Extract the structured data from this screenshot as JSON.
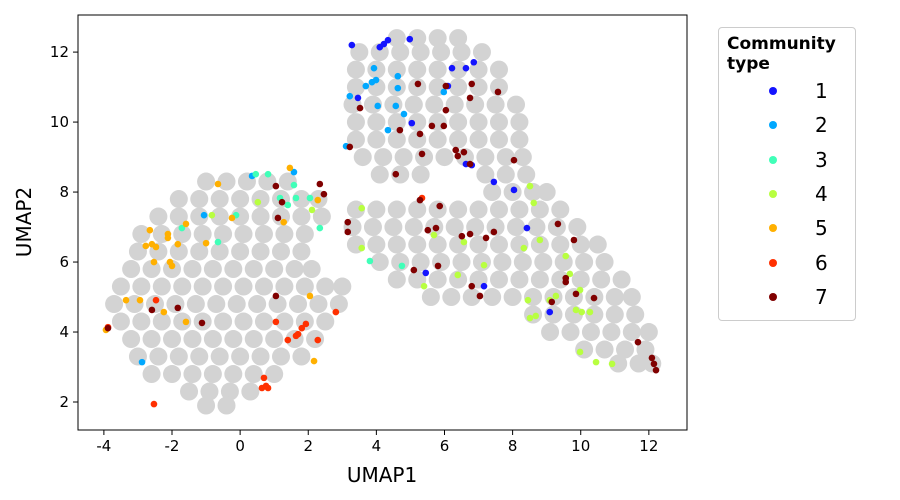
{
  "chart_data": {
    "type": "scatter",
    "xlabel": "UMAP1",
    "ylabel": "UMAP2",
    "legend_title": "Community type",
    "xlim": [
      -4.76,
      13.12
    ],
    "ylim": [
      1.2,
      13.06
    ],
    "xticks": [
      -4,
      -2,
      0,
      2,
      4,
      6,
      8,
      10,
      12
    ],
    "yticks": [
      2,
      4,
      6,
      8,
      10,
      12
    ],
    "background": {
      "color": "#d3d3d3",
      "x": [
        -1.0,
        -0.4,
        0.2,
        0.8,
        1.4,
        -1.8,
        -1.2,
        -0.6,
        0.0,
        0.6,
        1.2,
        1.8,
        2.3,
        -2.4,
        -1.8,
        -1.2,
        -0.6,
        0.0,
        0.6,
        1.2,
        1.8,
        2.4,
        -2.9,
        -2.3,
        -1.7,
        -1.1,
        -0.5,
        0.1,
        0.7,
        1.3,
        1.9,
        -3.0,
        -2.4,
        -1.8,
        -1.2,
        -0.6,
        0.0,
        0.6,
        1.2,
        1.8,
        -3.2,
        -2.6,
        -2.0,
        -1.4,
        -0.8,
        -0.2,
        0.4,
        1.0,
        1.6,
        2.1,
        -3.5,
        -2.9,
        -2.3,
        -1.7,
        -1.1,
        -0.5,
        0.1,
        0.7,
        1.3,
        1.9,
        2.5,
        3.0,
        -3.7,
        -3.1,
        -2.5,
        -1.9,
        -1.3,
        -0.7,
        -0.1,
        0.5,
        1.1,
        1.7,
        2.3,
        2.9,
        -3.5,
        -2.9,
        -2.3,
        -1.7,
        -1.1,
        -0.5,
        0.1,
        0.7,
        1.3,
        1.9,
        2.5,
        -3.2,
        -2.6,
        -2.0,
        -1.4,
        -0.8,
        -0.2,
        0.4,
        1.0,
        1.6,
        2.2,
        -3.0,
        -2.4,
        -1.8,
        -1.2,
        -0.6,
        0.0,
        0.6,
        1.2,
        1.8,
        -2.6,
        -2.0,
        -1.4,
        -0.8,
        -0.2,
        0.4,
        1.0,
        -1.5,
        -0.9,
        -0.3,
        0.3,
        -1.0,
        -0.4,
        4.6,
        5.2,
        5.8,
        6.4,
        3.5,
        4.1,
        4.7,
        5.3,
        5.9,
        6.5,
        7.1,
        3.4,
        4.0,
        4.6,
        5.2,
        5.8,
        6.4,
        7.0,
        7.6,
        3.4,
        4.0,
        4.6,
        5.2,
        5.8,
        6.4,
        7.0,
        7.6,
        3.3,
        3.9,
        4.5,
        5.1,
        5.7,
        6.3,
        6.9,
        7.5,
        8.1,
        3.4,
        4.0,
        4.6,
        5.2,
        5.8,
        6.4,
        7.0,
        7.6,
        8.2,
        3.4,
        4.0,
        4.6,
        5.2,
        5.8,
        6.4,
        7.0,
        7.6,
        8.2,
        3.6,
        4.2,
        4.8,
        5.4,
        6.0,
        6.6,
        7.2,
        7.8,
        8.3,
        4.1,
        4.7,
        5.3,
        7.2,
        7.8,
        8.4,
        7.4,
        8.0,
        8.6,
        9.0,
        3.4,
        4.0,
        4.6,
        5.2,
        5.8,
        6.4,
        7.0,
        7.6,
        8.2,
        8.8,
        9.4,
        3.3,
        3.9,
        4.5,
        5.1,
        5.7,
        6.3,
        6.9,
        7.5,
        8.1,
        8.7,
        9.3,
        9.9,
        3.4,
        4.0,
        4.6,
        5.2,
        5.8,
        6.4,
        7.0,
        7.6,
        8.2,
        8.8,
        9.4,
        10.0,
        10.5,
        4.1,
        4.7,
        5.3,
        5.9,
        6.5,
        7.1,
        7.7,
        8.3,
        8.9,
        9.5,
        10.1,
        10.7,
        4.6,
        5.2,
        5.8,
        6.4,
        7.0,
        7.6,
        8.2,
        8.8,
        9.4,
        10.0,
        10.6,
        11.2,
        5.6,
        6.2,
        6.8,
        7.4,
        8.0,
        8.6,
        9.2,
        9.8,
        10.4,
        11.0,
        11.5,
        8.6,
        9.2,
        9.8,
        10.4,
        11.0,
        11.6,
        9.1,
        9.7,
        10.3,
        10.9,
        11.5,
        12.0,
        10.1,
        10.7,
        11.3,
        11.9,
        11.1,
        11.7,
        12.1
      ],
      "y": [
        8.3,
        8.3,
        8.3,
        8.3,
        8.3,
        7.8,
        7.8,
        7.8,
        7.8,
        7.8,
        7.8,
        7.8,
        7.8,
        7.3,
        7.3,
        7.3,
        7.3,
        7.3,
        7.3,
        7.3,
        7.3,
        7.3,
        6.8,
        6.8,
        6.8,
        6.8,
        6.8,
        6.8,
        6.8,
        6.8,
        6.8,
        6.3,
        6.3,
        6.3,
        6.3,
        6.3,
        6.3,
        6.3,
        6.3,
        6.3,
        5.8,
        5.8,
        5.8,
        5.8,
        5.8,
        5.8,
        5.8,
        5.8,
        5.8,
        5.8,
        5.3,
        5.3,
        5.3,
        5.3,
        5.3,
        5.3,
        5.3,
        5.3,
        5.3,
        5.3,
        5.3,
        5.3,
        4.8,
        4.8,
        4.8,
        4.8,
        4.8,
        4.8,
        4.8,
        4.8,
        4.8,
        4.8,
        4.8,
        4.8,
        4.3,
        4.3,
        4.3,
        4.3,
        4.3,
        4.3,
        4.3,
        4.3,
        4.3,
        4.3,
        4.3,
        3.8,
        3.8,
        3.8,
        3.8,
        3.8,
        3.8,
        3.8,
        3.8,
        3.8,
        3.8,
        3.3,
        3.3,
        3.3,
        3.3,
        3.3,
        3.3,
        3.3,
        3.3,
        3.3,
        2.8,
        2.8,
        2.8,
        2.8,
        2.8,
        2.8,
        2.8,
        2.3,
        2.3,
        2.3,
        2.3,
        1.9,
        1.9,
        12.4,
        12.4,
        12.4,
        12.4,
        12.0,
        12.0,
        12.0,
        12.0,
        12.0,
        12.0,
        12.0,
        11.5,
        11.5,
        11.5,
        11.5,
        11.5,
        11.5,
        11.5,
        11.5,
        11.0,
        11.0,
        11.0,
        11.0,
        11.0,
        11.0,
        11.0,
        11.0,
        10.5,
        10.5,
        10.5,
        10.5,
        10.5,
        10.5,
        10.5,
        10.5,
        10.5,
        10.0,
        10.0,
        10.0,
        10.0,
        10.0,
        10.0,
        10.0,
        10.0,
        10.0,
        9.5,
        9.5,
        9.5,
        9.5,
        9.5,
        9.5,
        9.5,
        9.5,
        9.5,
        9.0,
        9.0,
        9.0,
        9.0,
        9.0,
        9.0,
        9.0,
        9.0,
        9.0,
        8.5,
        8.5,
        8.5,
        8.5,
        8.5,
        8.5,
        8.0,
        8.0,
        8.0,
        8.0,
        7.5,
        7.5,
        7.5,
        7.5,
        7.5,
        7.5,
        7.5,
        7.5,
        7.5,
        7.5,
        7.5,
        7.0,
        7.0,
        7.0,
        7.0,
        7.0,
        7.0,
        7.0,
        7.0,
        7.0,
        7.0,
        7.0,
        7.0,
        6.5,
        6.5,
        6.5,
        6.5,
        6.5,
        6.5,
        6.5,
        6.5,
        6.5,
        6.5,
        6.5,
        6.5,
        6.5,
        6.0,
        6.0,
        6.0,
        6.0,
        6.0,
        6.0,
        6.0,
        6.0,
        6.0,
        6.0,
        6.0,
        6.0,
        5.5,
        5.5,
        5.5,
        5.5,
        5.5,
        5.5,
        5.5,
        5.5,
        5.5,
        5.5,
        5.5,
        5.5,
        5.0,
        5.0,
        5.0,
        5.0,
        5.0,
        5.0,
        5.0,
        5.0,
        5.0,
        5.0,
        5.0,
        4.5,
        4.5,
        4.5,
        4.5,
        4.5,
        4.5,
        4.0,
        4.0,
        4.0,
        4.0,
        4.0,
        4.0,
        3.5,
        3.5,
        3.5,
        3.5,
        3.1,
        3.1,
        3.1
      ]
    },
    "series": [
      {
        "name": "1",
        "color": "#1414ff",
        "x": [
          3.28,
          3.46,
          4.1,
          4.22,
          4.34,
          4.98,
          6.22,
          6.63,
          6.86,
          6.1,
          5.04,
          7.45,
          8.42,
          8.04,
          5.45,
          7.16,
          6.63,
          6.8,
          9.09
        ],
        "y": [
          12.2,
          10.69,
          12.14,
          12.23,
          12.34,
          12.37,
          11.54,
          11.54,
          11.71,
          11.03,
          9.97,
          8.29,
          6.97,
          8.06,
          5.69,
          5.31,
          8.8,
          8.77,
          4.57
        ]
      },
      {
        "name": "2",
        "color": "#00a8ff",
        "x": [
          3.22,
          3.99,
          3.93,
          3.87,
          3.69,
          4.04,
          4.34,
          4.63,
          4.57,
          4.81,
          3.11,
          4.63,
          5.98,
          0.35,
          1.58,
          -1.06,
          -2.88
        ],
        "y": [
          10.74,
          11.2,
          11.54,
          11.14,
          11.03,
          10.46,
          9.77,
          10.97,
          10.46,
          10.23,
          9.31,
          11.31,
          10.86,
          8.46,
          8.57,
          7.34,
          3.14
        ]
      },
      {
        "name": "3",
        "color": "#40ffb8",
        "x": [
          0.46,
          0.82,
          1.58,
          2.05,
          1.64,
          1.17,
          -0.12,
          -0.65,
          -1.71,
          2.34,
          1.4,
          3.81,
          4.75
        ],
        "y": [
          8.51,
          8.51,
          8.2,
          7.83,
          7.83,
          7.83,
          7.34,
          6.57,
          6.97,
          6.97,
          7.63,
          6.03,
          5.89
        ]
      },
      {
        "name": "4",
        "color": "#b8ff40",
        "x": [
          3.57,
          3.57,
          5.69,
          6.57,
          6.39,
          7.16,
          5.4,
          8.51,
          8.62,
          8.8,
          8.33,
          8.45,
          8.51,
          8.68,
          9.09,
          9.27,
          9.56,
          9.68,
          9.98,
          9.86,
          10.03,
          10.27,
          9.98,
          10.45,
          10.92,
          0.52,
          -0.83,
          2.11
        ],
        "y": [
          7.54,
          6.4,
          6.77,
          6.57,
          5.63,
          5.91,
          5.31,
          8.17,
          7.69,
          6.63,
          6.4,
          4.91,
          4.4,
          4.46,
          4.91,
          5.03,
          6.17,
          5.66,
          5.2,
          4.63,
          4.57,
          4.57,
          3.43,
          3.14,
          3.09,
          7.71,
          7.34,
          7.49
        ]
      },
      {
        "name": "5",
        "color": "#ffb000",
        "x": [
          -2.65,
          -2.59,
          -2.77,
          -2.47,
          -2.12,
          -2.12,
          -1.83,
          -2.06,
          -2.0,
          -1.59,
          -1.59,
          -2.24,
          -2.94,
          -3.35,
          -0.65,
          -1.0,
          -0.24,
          1.46,
          1.28,
          2.28,
          2.17,
          -3.94,
          -2.53,
          2.05
        ],
        "y": [
          6.91,
          6.51,
          6.46,
          6.43,
          6.8,
          6.69,
          6.51,
          6.0,
          5.89,
          7.09,
          4.29,
          4.57,
          4.91,
          4.91,
          8.23,
          6.54,
          7.26,
          8.69,
          7.14,
          7.77,
          3.17,
          4.06,
          6.0,
          5.03
        ]
      },
      {
        "name": "6",
        "color": "#ff3000",
        "x": [
          -2.47,
          -2.53,
          1.05,
          1.4,
          1.64,
          1.81,
          1.93,
          2.28,
          1.7,
          0.7,
          0.76,
          0.82,
          0.64,
          2.81,
          5.34,
          -3.88
        ],
        "y": [
          4.91,
          1.94,
          4.29,
          3.77,
          3.89,
          4.11,
          4.23,
          3.77,
          3.94,
          2.69,
          2.46,
          2.4,
          2.4,
          4.57,
          7.83,
          4.14
        ]
      },
      {
        "name": "7",
        "color": "#800000",
        "x": [
          3.22,
          3.52,
          5.22,
          6.04,
          7.57,
          6.8,
          6.75,
          6.04,
          5.98,
          5.63,
          5.28,
          4.69,
          5.34,
          4.57,
          6.33,
          6.39,
          6.57,
          6.75,
          8.04,
          6.75,
          7.22,
          7.45,
          6.51,
          5.86,
          5.75,
          5.51,
          5.28,
          5.1,
          5.81,
          3.16,
          3.16,
          2.34,
          2.46,
          1.05,
          1.11,
          1.05,
          1.23,
          -1.83,
          -2.59,
          -1.12,
          9.33,
          9.8,
          9.56,
          9.56,
          9.86,
          10.39,
          6.8,
          7.04,
          11.68,
          12.09,
          12.15,
          12.21,
          -3.88,
          9.15
        ],
        "y": [
          9.29,
          10.4,
          11.09,
          11.03,
          10.86,
          11.09,
          10.69,
          10.34,
          9.89,
          9.89,
          9.66,
          9.77,
          9.09,
          8.51,
          9.2,
          9.03,
          9.14,
          8.8,
          8.91,
          6.8,
          6.69,
          6.86,
          6.74,
          7.6,
          6.97,
          6.91,
          7.77,
          5.77,
          5.89,
          7.14,
          6.86,
          8.23,
          7.94,
          8.17,
          7.26,
          5.03,
          7.71,
          4.69,
          4.63,
          4.26,
          7.09,
          6.63,
          5.54,
          5.43,
          5.09,
          4.97,
          5.31,
          5.03,
          3.71,
          3.26,
          3.09,
          2.91,
          4.11,
          4.86
        ]
      }
    ]
  }
}
